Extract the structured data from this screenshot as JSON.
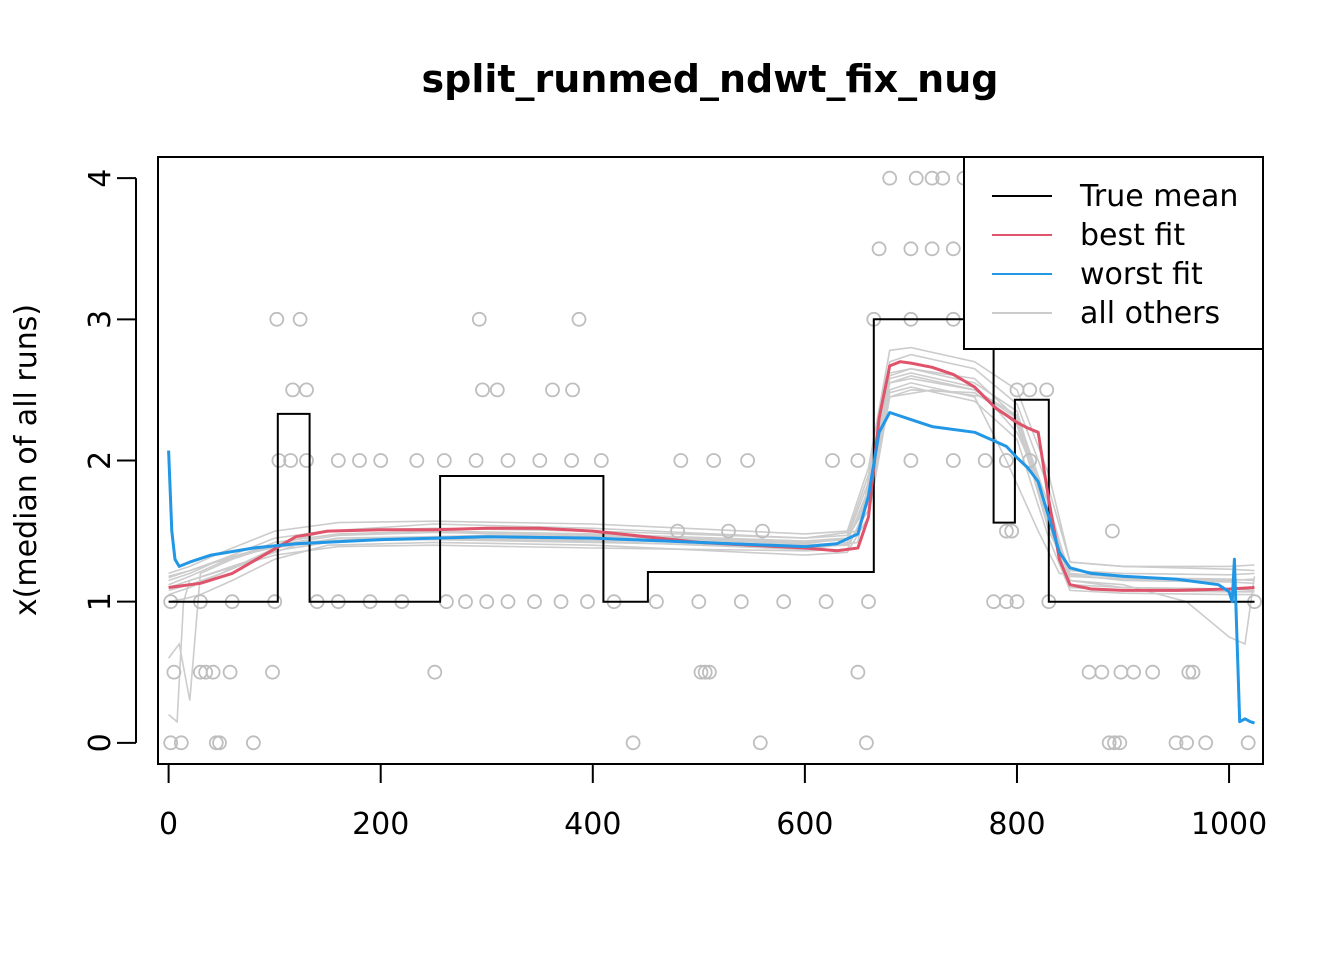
{
  "chart_data": {
    "type": "line",
    "title": "split_runmed_ndwt_fix_nug",
    "xlabel": "",
    "ylabel": "x(median of all runs)",
    "xlim": [
      -10,
      1032
    ],
    "ylim": [
      -0.15,
      4.15
    ],
    "x_ticks": [
      0,
      200,
      400,
      600,
      800,
      1000
    ],
    "y_ticks": [
      0,
      1,
      2,
      3,
      4
    ],
    "grid": false,
    "legend_position": "top-right",
    "colors": {
      "true_mean": "#000000",
      "best_fit": "#DF536B",
      "worst_fit": "#2297E6",
      "others": "#CCCCCC",
      "points": "#BEBEBE"
    },
    "legend": [
      {
        "label": "True mean",
        "color": "#000000"
      },
      {
        "label": "best fit",
        "color": "#DF536B"
      },
      {
        "label": "worst fit",
        "color": "#2297E6"
      },
      {
        "label": "all others",
        "color": "#CCCCCC"
      }
    ],
    "series": [
      {
        "name": "True mean",
        "step": true,
        "x": [
          0,
          103,
          103,
          133,
          133,
          152,
          152,
          237,
          237,
          256,
          256,
          410,
          410,
          452,
          452,
          665,
          665,
          778,
          778,
          798,
          798,
          830,
          830,
          1024
        ],
        "y": [
          1,
          1,
          2.33,
          2.33,
          1,
          1,
          1,
          1,
          1,
          1,
          1.89,
          1.89,
          1,
          1,
          1.21,
          1.21,
          3.0,
          3.0,
          1.56,
          1.56,
          2.43,
          2.43,
          1,
          1
        ]
      },
      {
        "name": "best fit",
        "x": [
          0,
          30,
          60,
          90,
          120,
          150,
          200,
          250,
          300,
          350,
          400,
          450,
          500,
          550,
          600,
          630,
          650,
          660,
          670,
          680,
          690,
          700,
          720,
          740,
          760,
          780,
          790,
          800,
          810,
          820,
          830,
          840,
          850,
          870,
          900,
          950,
          1000,
          1024
        ],
        "y": [
          1.1,
          1.13,
          1.2,
          1.33,
          1.46,
          1.5,
          1.51,
          1.51,
          1.52,
          1.52,
          1.5,
          1.46,
          1.42,
          1.4,
          1.38,
          1.36,
          1.38,
          1.6,
          2.3,
          2.67,
          2.7,
          2.69,
          2.66,
          2.61,
          2.52,
          2.37,
          2.32,
          2.27,
          2.23,
          2.2,
          1.72,
          1.3,
          1.12,
          1.09,
          1.08,
          1.08,
          1.09,
          1.1
        ]
      },
      {
        "name": "worst fit",
        "x": [
          0,
          3,
          6,
          10,
          20,
          40,
          80,
          120,
          200,
          300,
          400,
          500,
          600,
          630,
          650,
          660,
          670,
          680,
          700,
          720,
          760,
          790,
          800,
          810,
          820,
          830,
          840,
          850,
          870,
          900,
          950,
          990,
          1000,
          1003,
          1005,
          1010,
          1015,
          1020,
          1024
        ],
        "y": [
          2.07,
          1.5,
          1.3,
          1.25,
          1.28,
          1.33,
          1.38,
          1.41,
          1.44,
          1.46,
          1.45,
          1.42,
          1.39,
          1.41,
          1.48,
          1.75,
          2.2,
          2.34,
          2.29,
          2.24,
          2.2,
          2.1,
          2.02,
          1.95,
          1.85,
          1.6,
          1.35,
          1.24,
          1.2,
          1.18,
          1.16,
          1.12,
          1.07,
          1.0,
          1.3,
          0.15,
          0.17,
          0.15,
          0.14
        ]
      }
    ],
    "other_runs": [
      {
        "x": [
          0,
          8,
          14,
          20,
          40,
          80,
          120,
          200,
          400,
          600,
          650,
          665,
          680,
          700,
          760,
          800,
          830,
          850,
          900,
          1000,
          1024
        ],
        "y": [
          0.2,
          0.15,
          1.0,
          1.15,
          1.2,
          1.3,
          1.4,
          1.45,
          1.43,
          1.37,
          1.42,
          2.1,
          2.55,
          2.6,
          2.5,
          2.3,
          1.5,
          1.2,
          1.17,
          1.16,
          1.15
        ]
      },
      {
        "x": [
          0,
          10,
          20,
          30,
          60,
          100,
          150,
          250,
          400,
          600,
          650,
          665,
          680,
          700,
          760,
          800,
          830,
          850,
          900,
          1000,
          1024
        ],
        "y": [
          0.6,
          0.7,
          0.3,
          1.2,
          1.3,
          1.4,
          1.5,
          1.55,
          1.52,
          1.45,
          1.5,
          2.0,
          2.7,
          2.75,
          2.65,
          2.4,
          1.8,
          1.28,
          1.25,
          1.23,
          1.22
        ]
      },
      {
        "x": [
          0,
          10,
          20,
          40,
          80,
          120,
          200,
          300,
          400,
          600,
          640,
          660,
          680,
          700,
          760,
          790,
          820,
          840,
          900,
          1000,
          1024
        ],
        "y": [
          1.18,
          1.2,
          1.22,
          1.27,
          1.35,
          1.42,
          1.45,
          1.47,
          1.46,
          1.41,
          1.45,
          1.7,
          2.5,
          2.55,
          2.45,
          2.0,
          1.5,
          1.2,
          1.15,
          1.14,
          1.13
        ]
      },
      {
        "x": [
          0,
          15,
          30,
          60,
          100,
          150,
          250,
          400,
          600,
          640,
          660,
          680,
          720,
          770,
          800,
          830,
          850,
          900,
          1000,
          1024
        ],
        "y": [
          1.0,
          1.02,
          1.05,
          1.15,
          1.3,
          1.4,
          1.42,
          1.4,
          1.33,
          1.35,
          1.6,
          2.45,
          2.5,
          2.45,
          2.2,
          1.7,
          1.15,
          1.1,
          1.09,
          1.08
        ]
      },
      {
        "x": [
          0,
          20,
          50,
          100,
          150,
          250,
          400,
          600,
          640,
          660,
          680,
          700,
          760,
          800,
          830,
          850,
          900,
          1000,
          1024
        ],
        "y": [
          1.15,
          1.2,
          1.3,
          1.45,
          1.5,
          1.52,
          1.5,
          1.45,
          1.47,
          1.9,
          2.62,
          2.65,
          2.55,
          2.35,
          1.6,
          1.22,
          1.2,
          1.19,
          1.2
        ]
      },
      {
        "x": [
          0,
          20,
          50,
          100,
          160,
          250,
          400,
          600,
          640,
          660,
          680,
          700,
          760,
          800,
          830,
          850,
          900,
          1000,
          1024
        ],
        "y": [
          1.05,
          1.1,
          1.2,
          1.38,
          1.45,
          1.46,
          1.44,
          1.4,
          1.42,
          1.8,
          2.58,
          2.62,
          2.52,
          2.25,
          1.55,
          1.12,
          1.1,
          1.09,
          1.1
        ]
      },
      {
        "x": [
          0,
          20,
          50,
          100,
          160,
          250,
          400,
          600,
          640,
          660,
          680,
          700,
          760,
          800,
          830,
          850,
          900,
          1000,
          1024
        ],
        "y": [
          1.2,
          1.25,
          1.35,
          1.5,
          1.56,
          1.57,
          1.55,
          1.48,
          1.5,
          1.95,
          2.78,
          2.8,
          2.7,
          2.5,
          1.9,
          1.28,
          1.25,
          1.25,
          1.26
        ]
      },
      {
        "x": [
          0,
          20,
          50,
          100,
          160,
          250,
          400,
          600,
          640,
          660,
          680,
          700,
          760,
          800,
          830,
          850,
          900,
          1000,
          1024
        ],
        "y": [
          1.1,
          1.15,
          1.22,
          1.33,
          1.39,
          1.4,
          1.38,
          1.36,
          1.37,
          1.7,
          2.48,
          2.52,
          2.42,
          2.15,
          1.45,
          1.08,
          1.06,
          1.05,
          1.05
        ]
      },
      {
        "x": [
          0,
          20,
          50,
          100,
          160,
          250,
          400,
          600,
          640,
          660,
          680,
          700,
          760,
          800,
          830,
          850,
          900,
          960,
          1000,
          1015,
          1024
        ],
        "y": [
          1.12,
          1.18,
          1.28,
          1.42,
          1.48,
          1.5,
          1.48,
          1.43,
          1.45,
          1.85,
          2.6,
          2.65,
          2.58,
          2.3,
          1.62,
          1.15,
          1.12,
          1.0,
          0.75,
          0.7,
          1.18
        ]
      },
      {
        "x": [
          0,
          20,
          50,
          100,
          160,
          250,
          400,
          600,
          640,
          660,
          680,
          700,
          760,
          800,
          830,
          850,
          900,
          1000,
          1024
        ],
        "y": [
          1.17,
          1.22,
          1.3,
          1.4,
          1.47,
          1.49,
          1.47,
          1.42,
          1.44,
          1.75,
          2.55,
          2.58,
          2.5,
          2.32,
          1.68,
          1.18,
          1.16,
          1.15,
          1.16
        ]
      },
      {
        "x": [
          0,
          20,
          50,
          100,
          160,
          250,
          400,
          600,
          640,
          660,
          680,
          700,
          760,
          800,
          830,
          850,
          900,
          1000,
          1024
        ],
        "y": [
          1.08,
          1.12,
          1.2,
          1.36,
          1.43,
          1.44,
          1.42,
          1.39,
          1.4,
          1.65,
          2.45,
          2.5,
          2.48,
          2.28,
          1.58,
          1.1,
          1.08,
          1.07,
          1.07
        ]
      }
    ],
    "points": [
      {
        "x": 2,
        "y": 0
      },
      {
        "x": 12,
        "y": 0
      },
      {
        "x": 45,
        "y": 0
      },
      {
        "x": 48,
        "y": 0
      },
      {
        "x": 80,
        "y": 0
      },
      {
        "x": 438,
        "y": 0
      },
      {
        "x": 558,
        "y": 0
      },
      {
        "x": 658,
        "y": 0
      },
      {
        "x": 887,
        "y": 0
      },
      {
        "x": 892,
        "y": 0
      },
      {
        "x": 897,
        "y": 0
      },
      {
        "x": 950,
        "y": 0
      },
      {
        "x": 960,
        "y": 0
      },
      {
        "x": 978,
        "y": 0
      },
      {
        "x": 1018,
        "y": 0
      },
      {
        "x": 5,
        "y": 0.5
      },
      {
        "x": 30,
        "y": 0.5
      },
      {
        "x": 35,
        "y": 0.5
      },
      {
        "x": 42,
        "y": 0.5
      },
      {
        "x": 58,
        "y": 0.5
      },
      {
        "x": 98,
        "y": 0.5
      },
      {
        "x": 251,
        "y": 0.5
      },
      {
        "x": 502,
        "y": 0.5
      },
      {
        "x": 506,
        "y": 0.5
      },
      {
        "x": 510,
        "y": 0.5
      },
      {
        "x": 650,
        "y": 0.5
      },
      {
        "x": 868,
        "y": 0.5
      },
      {
        "x": 880,
        "y": 0.5
      },
      {
        "x": 898,
        "y": 0.5
      },
      {
        "x": 910,
        "y": 0.5
      },
      {
        "x": 928,
        "y": 0.5
      },
      {
        "x": 962,
        "y": 0.5
      },
      {
        "x": 966,
        "y": 0.5
      },
      {
        "x": 2,
        "y": 1
      },
      {
        "x": 30,
        "y": 1
      },
      {
        "x": 60,
        "y": 1
      },
      {
        "x": 100,
        "y": 1
      },
      {
        "x": 140,
        "y": 1
      },
      {
        "x": 160,
        "y": 1
      },
      {
        "x": 190,
        "y": 1
      },
      {
        "x": 220,
        "y": 1
      },
      {
        "x": 262,
        "y": 1
      },
      {
        "x": 280,
        "y": 1
      },
      {
        "x": 300,
        "y": 1
      },
      {
        "x": 320,
        "y": 1
      },
      {
        "x": 345,
        "y": 1
      },
      {
        "x": 370,
        "y": 1
      },
      {
        "x": 395,
        "y": 1
      },
      {
        "x": 420,
        "y": 1
      },
      {
        "x": 460,
        "y": 1
      },
      {
        "x": 500,
        "y": 1
      },
      {
        "x": 540,
        "y": 1
      },
      {
        "x": 580,
        "y": 1
      },
      {
        "x": 620,
        "y": 1
      },
      {
        "x": 660,
        "y": 1
      },
      {
        "x": 778,
        "y": 1
      },
      {
        "x": 790,
        "y": 1
      },
      {
        "x": 800,
        "y": 1
      },
      {
        "x": 830,
        "y": 1
      },
      {
        "x": 1024,
        "y": 1
      },
      {
        "x": 480,
        "y": 1.5
      },
      {
        "x": 528,
        "y": 1.5
      },
      {
        "x": 560,
        "y": 1.5
      },
      {
        "x": 790,
        "y": 1.5
      },
      {
        "x": 795,
        "y": 1.5
      },
      {
        "x": 890,
        "y": 1.5
      },
      {
        "x": 104,
        "y": 2
      },
      {
        "x": 115,
        "y": 2
      },
      {
        "x": 130,
        "y": 2
      },
      {
        "x": 160,
        "y": 2
      },
      {
        "x": 180,
        "y": 2
      },
      {
        "x": 200,
        "y": 2
      },
      {
        "x": 234,
        "y": 2
      },
      {
        "x": 260,
        "y": 2
      },
      {
        "x": 290,
        "y": 2
      },
      {
        "x": 320,
        "y": 2
      },
      {
        "x": 350,
        "y": 2
      },
      {
        "x": 380,
        "y": 2
      },
      {
        "x": 408,
        "y": 2
      },
      {
        "x": 483,
        "y": 2
      },
      {
        "x": 514,
        "y": 2
      },
      {
        "x": 546,
        "y": 2
      },
      {
        "x": 626,
        "y": 2
      },
      {
        "x": 650,
        "y": 2
      },
      {
        "x": 700,
        "y": 2
      },
      {
        "x": 740,
        "y": 2
      },
      {
        "x": 770,
        "y": 2
      },
      {
        "x": 790,
        "y": 2
      },
      {
        "x": 812,
        "y": 2
      },
      {
        "x": 117,
        "y": 2.5
      },
      {
        "x": 130,
        "y": 2.5
      },
      {
        "x": 296,
        "y": 2.5
      },
      {
        "x": 310,
        "y": 2.5
      },
      {
        "x": 362,
        "y": 2.5
      },
      {
        "x": 381,
        "y": 2.5
      },
      {
        "x": 800,
        "y": 2.5
      },
      {
        "x": 812,
        "y": 2.5
      },
      {
        "x": 828,
        "y": 2.5
      },
      {
        "x": 102,
        "y": 3
      },
      {
        "x": 124,
        "y": 3
      },
      {
        "x": 293,
        "y": 3
      },
      {
        "x": 387,
        "y": 3
      },
      {
        "x": 665,
        "y": 3
      },
      {
        "x": 700,
        "y": 3
      },
      {
        "x": 740,
        "y": 3
      },
      {
        "x": 670,
        "y": 3.5
      },
      {
        "x": 700,
        "y": 3.5
      },
      {
        "x": 720,
        "y": 3.5
      },
      {
        "x": 740,
        "y": 3.5
      },
      {
        "x": 760,
        "y": 3.5
      },
      {
        "x": 680,
        "y": 4
      },
      {
        "x": 705,
        "y": 4
      },
      {
        "x": 720,
        "y": 4
      },
      {
        "x": 730,
        "y": 4
      },
      {
        "x": 750,
        "y": 4
      }
    ]
  }
}
